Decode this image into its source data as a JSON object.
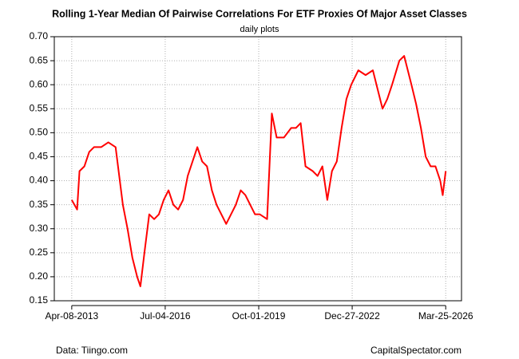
{
  "chart_data": {
    "type": "line",
    "title": "Rolling 1-Year Median Of Pairwise Correlations For ETF Proxies Of Major Asset Classes",
    "subtitle": "daily plots",
    "source": "Data: Tiingo.com",
    "credit": "CapitalSpectator.com",
    "grid": true,
    "xlim": [
      "2012-08-30",
      "2026-10-11"
    ],
    "xticks": [
      {
        "value": "2013-04-08",
        "label": "Apr-08-2013"
      },
      {
        "value": "2016-07-04",
        "label": "Jul-04-2016"
      },
      {
        "value": "2019-10-01",
        "label": "Oct-01-2019"
      },
      {
        "value": "2022-12-27",
        "label": "Dec-27-2022"
      },
      {
        "value": "2026-03-25",
        "label": "Mar-25-2026"
      }
    ],
    "ylim": [
      0.15,
      0.7
    ],
    "yticks": [
      {
        "value": 0.15,
        "label": "0.15"
      },
      {
        "value": 0.2,
        "label": "0.20"
      },
      {
        "value": 0.25,
        "label": "0.25"
      },
      {
        "value": 0.3,
        "label": "0.30"
      },
      {
        "value": 0.35,
        "label": "0.35"
      },
      {
        "value": 0.4,
        "label": "0.40"
      },
      {
        "value": 0.45,
        "label": "0.45"
      },
      {
        "value": 0.5,
        "label": "0.50"
      },
      {
        "value": 0.55,
        "label": "0.55"
      },
      {
        "value": 0.6,
        "label": "0.60"
      },
      {
        "value": 0.65,
        "label": "0.65"
      },
      {
        "value": 0.7,
        "label": "0.70"
      }
    ],
    "x": [
      "2013-04-08",
      "2013-06-15",
      "2013-07-15",
      "2013-09-15",
      "2013-11-15",
      "2014-01-15",
      "2014-04-15",
      "2014-07-15",
      "2014-10-15",
      "2015-01-15",
      "2015-03-15",
      "2015-05-15",
      "2015-07-15",
      "2015-08-25",
      "2015-10-15",
      "2015-12-15",
      "2016-02-15",
      "2016-04-15",
      "2016-06-15",
      "2016-08-15",
      "2016-10-15",
      "2016-12-15",
      "2017-02-15",
      "2017-04-15",
      "2017-06-15",
      "2017-08-15",
      "2017-10-15",
      "2017-12-15",
      "2018-02-15",
      "2018-04-15",
      "2018-06-15",
      "2018-08-15",
      "2018-10-15",
      "2018-12-15",
      "2019-02-15",
      "2019-04-15",
      "2019-06-15",
      "2019-08-15",
      "2019-10-15",
      "2020-01-15",
      "2020-03-15",
      "2020-05-15",
      "2020-08-15",
      "2020-11-15",
      "2021-01-15",
      "2021-03-15",
      "2021-05-15",
      "2021-08-15",
      "2021-10-15",
      "2021-12-15",
      "2022-02-15",
      "2022-04-15",
      "2022-06-15",
      "2022-08-15",
      "2022-10-15",
      "2022-12-15",
      "2023-03-15",
      "2023-06-15",
      "2023-09-15",
      "2023-11-15",
      "2024-01-15",
      "2024-03-15",
      "2024-05-15",
      "2024-08-15",
      "2024-10-15",
      "2025-01-15",
      "2025-03-15",
      "2025-05-15",
      "2025-07-15",
      "2025-09-15",
      "2025-11-15",
      "2026-01-15",
      "2026-02-15",
      "2026-03-25"
    ],
    "series": [
      {
        "color": "#ff0000",
        "values": [
          0.36,
          0.34,
          0.42,
          0.43,
          0.46,
          0.47,
          0.47,
          0.48,
          0.47,
          0.35,
          0.3,
          0.24,
          0.2,
          0.18,
          0.25,
          0.33,
          0.32,
          0.33,
          0.36,
          0.38,
          0.35,
          0.34,
          0.36,
          0.41,
          0.44,
          0.47,
          0.44,
          0.43,
          0.38,
          0.35,
          0.33,
          0.31,
          0.33,
          0.35,
          0.38,
          0.37,
          0.35,
          0.33,
          0.33,
          0.32,
          0.54,
          0.49,
          0.49,
          0.51,
          0.51,
          0.52,
          0.43,
          0.42,
          0.41,
          0.43,
          0.36,
          0.42,
          0.44,
          0.51,
          0.57,
          0.6,
          0.63,
          0.62,
          0.63,
          0.59,
          0.55,
          0.57,
          0.6,
          0.65,
          0.66,
          0.6,
          0.56,
          0.51,
          0.45,
          0.43,
          0.43,
          0.4,
          0.37,
          0.42
        ]
      }
    ]
  }
}
